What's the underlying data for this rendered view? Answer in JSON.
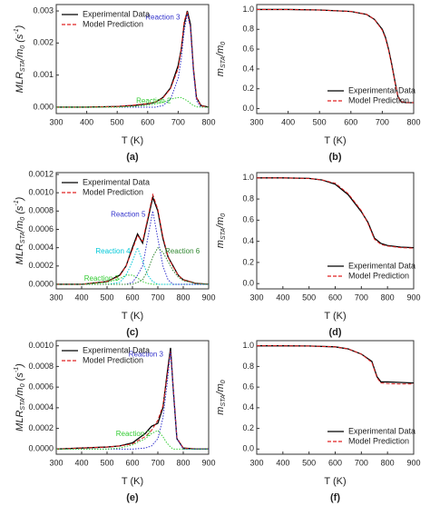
{
  "chart_data": [
    {
      "type": "line",
      "panel_label": "(a)",
      "xlabel": "T (K)",
      "ylabel": [
        "MLR",
        "STA",
        "/m",
        "0",
        " (s",
        "-1",
        ")"
      ],
      "xlim": [
        300,
        800
      ],
      "xticks": [
        300,
        400,
        500,
        600,
        700,
        800
      ],
      "ylim": [
        -0.0002,
        0.0032
      ],
      "yticks": [
        {
          "value": 0,
          "label": "0.000"
        },
        {
          "value": 0.001,
          "label": "0.001"
        },
        {
          "value": 0.002,
          "label": "0.002"
        },
        {
          "value": 0.003,
          "label": "0.003"
        }
      ],
      "legend": "upper left",
      "x": [
        300,
        400,
        500,
        550,
        600,
        625,
        650,
        675,
        700,
        710,
        720,
        730,
        740,
        750,
        760,
        775,
        800
      ],
      "series": [
        {
          "name": "Experimental Data",
          "color": "#000000",
          "style": "solid",
          "in_legend": true,
          "values": [
            0,
            0,
            2e-05,
            5e-05,
            0.0001,
            0.00015,
            0.0003,
            0.0006,
            0.0013,
            0.0018,
            0.0026,
            0.003,
            0.0026,
            0.0012,
            0.0003,
            5e-05,
            0
          ]
        },
        {
          "name": "Model Prediction",
          "color": "#e02020",
          "style": "dashed",
          "in_legend": true,
          "values": [
            0,
            0,
            2e-05,
            6e-05,
            0.00011,
            0.00016,
            0.00028,
            0.00058,
            0.0012,
            0.0018,
            0.0027,
            0.00295,
            0.0025,
            0.0012,
            0.0003,
            4e-05,
            0
          ]
        },
        {
          "name": "Reaction 3",
          "color": "#3333cc",
          "style": "dotted",
          "in_legend": false,
          "values": [
            0,
            0,
            0,
            0,
            0,
            0,
            5e-05,
            0.00025,
            0.0009,
            0.0015,
            0.0024,
            0.0029,
            0.0025,
            0.0011,
            0.0002,
            0,
            0
          ]
        },
        {
          "name": "Reaction 2",
          "color": "#33cc33",
          "style": "dotted",
          "in_legend": false,
          "values": [
            0,
            0,
            0,
            2e-05,
            6e-05,
            0.0001,
            0.00015,
            0.00025,
            0.0003,
            0.0003,
            0.00025,
            0.0002,
            0.00012,
            5e-05,
            1e-05,
            0,
            0
          ]
        }
      ]
    },
    {
      "type": "line",
      "panel_label": "(b)",
      "xlabel": "T (K)",
      "ylabel": [
        "m",
        "STA",
        "/m",
        "0"
      ],
      "xlim": [
        300,
        800
      ],
      "xticks": [
        300,
        400,
        500,
        600,
        700,
        800
      ],
      "ylim": [
        -0.05,
        1.05
      ],
      "yticks": [
        {
          "value": 0,
          "label": "0.0"
        },
        {
          "value": 0.2,
          "label": "0.2"
        },
        {
          "value": 0.4,
          "label": "0.4"
        },
        {
          "value": 0.6,
          "label": "0.6"
        },
        {
          "value": 0.8,
          "label": "0.8"
        },
        {
          "value": 1,
          "label": "1.0"
        }
      ],
      "legend": "lower right",
      "x": [
        300,
        400,
        500,
        600,
        650,
        675,
        700,
        710,
        720,
        730,
        740,
        750,
        760,
        775,
        800
      ],
      "series": [
        {
          "name": "Experimental Data",
          "color": "#000000",
          "style": "solid",
          "in_legend": true,
          "values": [
            1,
            1,
            0.995,
            0.98,
            0.95,
            0.9,
            0.8,
            0.72,
            0.6,
            0.45,
            0.28,
            0.12,
            0.07,
            0.06,
            0.06
          ]
        },
        {
          "name": "Model Prediction",
          "color": "#e02020",
          "style": "dashed",
          "in_legend": true,
          "values": [
            1,
            1,
            0.995,
            0.98,
            0.95,
            0.9,
            0.79,
            0.71,
            0.59,
            0.44,
            0.27,
            0.12,
            0.07,
            0.06,
            0.06
          ]
        }
      ]
    },
    {
      "type": "line",
      "panel_label": "(c)",
      "xlabel": "T (K)",
      "ylabel": [
        "MLR",
        "STA",
        "/m",
        "0",
        " (s",
        "-1",
        ")"
      ],
      "xlim": [
        300,
        900
      ],
      "xticks": [
        300,
        400,
        500,
        600,
        700,
        800,
        900
      ],
      "ylim": [
        -5e-05,
        0.00122
      ],
      "yticks": [
        {
          "value": 0,
          "label": "0.0000"
        },
        {
          "value": 0.0002,
          "label": "0.0002"
        },
        {
          "value": 0.0004,
          "label": "0.0004"
        },
        {
          "value": 0.0006,
          "label": "0.0006"
        },
        {
          "value": 0.0008,
          "label": "0.0008"
        },
        {
          "value": 0.001,
          "label": "0.0010"
        },
        {
          "value": 0.0012,
          "label": "0.0012"
        }
      ],
      "legend": "upper left",
      "x": [
        300,
        400,
        500,
        550,
        575,
        600,
        620,
        640,
        660,
        680,
        700,
        720,
        740,
        760,
        780,
        800,
        850,
        900
      ],
      "series": [
        {
          "name": "Experimental Data",
          "color": "#000000",
          "style": "solid",
          "in_legend": true,
          "values": [
            0,
            0,
            3e-05,
            0.0001,
            0.0002,
            0.0004,
            0.00055,
            0.00045,
            0.0007,
            0.00095,
            0.0008,
            0.0005,
            0.0003,
            0.0002,
            0.0001,
            5e-05,
            1e-05,
            0
          ]
        },
        {
          "name": "Model Prediction",
          "color": "#e02020",
          "style": "dashed",
          "in_legend": true,
          "values": [
            0,
            0,
            3e-05,
            9e-05,
            0.0002,
            0.00038,
            0.00053,
            0.00047,
            0.00072,
            0.00098,
            0.00082,
            0.00052,
            0.0003,
            0.00019,
            0.0001,
            5e-05,
            1e-05,
            0
          ]
        },
        {
          "name": "Reaction 3",
          "color": "#33cc33",
          "style": "dotted",
          "in_legend": false,
          "values": [
            0,
            0,
            2e-05,
            6e-05,
            0.0001,
            0.0001,
            7e-05,
            3e-05,
            1e-05,
            0,
            0,
            0,
            0,
            0,
            0,
            0,
            0,
            0
          ]
        },
        {
          "name": "Reaction 4",
          "color": "#00c8d8",
          "style": "dotted",
          "in_legend": false,
          "values": [
            0,
            0,
            0,
            2e-05,
            0.0001,
            0.00025,
            0.0004,
            0.00025,
            0.0001,
            3e-05,
            0,
            0,
            0,
            0,
            0,
            0,
            0,
            0
          ]
        },
        {
          "name": "Reaction 5",
          "color": "#3333cc",
          "style": "dotted",
          "in_legend": false,
          "values": [
            0,
            0,
            0,
            0,
            0,
            2e-05,
            0.0001,
            0.0002,
            0.0005,
            0.0008,
            0.0005,
            0.0002,
            5e-05,
            0,
            0,
            0,
            0,
            0
          ]
        },
        {
          "name": "Reaction 6",
          "color": "#338833",
          "style": "dotted",
          "in_legend": false,
          "values": [
            0,
            0,
            0,
            0,
            0,
            0,
            2e-05,
            5e-05,
            0.00015,
            0.0003,
            0.0004,
            0.00035,
            0.00025,
            0.00015,
            8e-05,
            4e-05,
            1e-05,
            0
          ]
        }
      ]
    },
    {
      "type": "line",
      "panel_label": "(d)",
      "xlabel": "T (K)",
      "ylabel": [
        "m",
        "STA",
        "/m",
        "0"
      ],
      "xlim": [
        300,
        900
      ],
      "xticks": [
        300,
        400,
        500,
        600,
        700,
        800,
        900
      ],
      "ylim": [
        -0.05,
        1.05
      ],
      "yticks": [
        {
          "value": 0,
          "label": "0.0"
        },
        {
          "value": 0.2,
          "label": "0.2"
        },
        {
          "value": 0.4,
          "label": "0.4"
        },
        {
          "value": 0.6,
          "label": "0.6"
        },
        {
          "value": 0.8,
          "label": "0.8"
        },
        {
          "value": 1,
          "label": "1.0"
        }
      ],
      "legend": "lower right",
      "x": [
        300,
        400,
        500,
        550,
        600,
        650,
        700,
        725,
        750,
        775,
        800,
        850,
        900
      ],
      "series": [
        {
          "name": "Experimental Data",
          "color": "#000000",
          "style": "solid",
          "in_legend": true,
          "values": [
            1,
            1,
            0.995,
            0.98,
            0.94,
            0.84,
            0.68,
            0.58,
            0.43,
            0.38,
            0.36,
            0.345,
            0.34
          ]
        },
        {
          "name": "Model Prediction",
          "color": "#e02020",
          "style": "dashed",
          "in_legend": true,
          "values": [
            1,
            1,
            0.995,
            0.98,
            0.95,
            0.85,
            0.69,
            0.57,
            0.42,
            0.37,
            0.355,
            0.34,
            0.335
          ]
        }
      ]
    },
    {
      "type": "line",
      "panel_label": "(e)",
      "xlabel": "T (K)",
      "ylabel": [
        "MLR",
        "STA",
        "/m",
        "0",
        " (s",
        "-1",
        ")"
      ],
      "xlim": [
        300,
        900
      ],
      "xticks": [
        300,
        400,
        500,
        600,
        700,
        800,
        900
      ],
      "ylim": [
        -5e-05,
        0.00105
      ],
      "yticks": [
        {
          "value": 0,
          "label": "0.0000"
        },
        {
          "value": 0.0002,
          "label": "0.0002"
        },
        {
          "value": 0.0004,
          "label": "0.0004"
        },
        {
          "value": 0.0006,
          "label": "0.0006"
        },
        {
          "value": 0.0008,
          "label": "0.0008"
        },
        {
          "value": 0.001,
          "label": "0.0010"
        }
      ],
      "legend": "upper left",
      "x": [
        300,
        400,
        500,
        550,
        600,
        650,
        675,
        700,
        720,
        735,
        750,
        760,
        775,
        800,
        850,
        900
      ],
      "series": [
        {
          "name": "Experimental Data",
          "color": "#000000",
          "style": "solid",
          "in_legend": true,
          "values": [
            0,
            1e-05,
            2e-05,
            3e-05,
            6e-05,
            0.00015,
            0.00022,
            0.00025,
            0.0004,
            0.0007,
            0.00098,
            0.0006,
            0.0001,
            1e-05,
            0,
            0
          ]
        },
        {
          "name": "Model Prediction",
          "color": "#e02020",
          "style": "dashed",
          "in_legend": true,
          "values": [
            0,
            1e-05,
            2e-05,
            3e-05,
            5e-05,
            0.00012,
            0.00018,
            0.00028,
            0.00042,
            0.00068,
            0.00095,
            0.00062,
            0.00011,
            1e-05,
            0,
            0
          ]
        },
        {
          "name": "Reaction 3",
          "color": "#3333cc",
          "style": "dotted",
          "in_legend": false,
          "values": [
            0,
            0,
            0,
            0,
            0,
            1e-05,
            3e-05,
            0.0001,
            0.0003,
            0.0006,
            0.00095,
            0.0006,
            0.0001,
            0,
            0,
            0
          ]
        },
        {
          "name": "Reaction 2",
          "color": "#33cc33",
          "style": "dotted",
          "in_legend": false,
          "values": [
            0,
            0,
            0,
            1e-05,
            4e-05,
            0.0001,
            0.00015,
            0.00018,
            0.00012,
            6e-05,
            2e-05,
            0,
            0,
            0,
            0,
            0
          ]
        }
      ]
    },
    {
      "type": "line",
      "panel_label": "(f)",
      "xlabel": "T (K)",
      "ylabel": [
        "m",
        "STA",
        "/m",
        "0"
      ],
      "xlim": [
        300,
        900
      ],
      "xticks": [
        300,
        400,
        500,
        600,
        700,
        800,
        900
      ],
      "ylim": [
        -0.05,
        1.05
      ],
      "yticks": [
        {
          "value": 0,
          "label": "0.0"
        },
        {
          "value": 0.2,
          "label": "0.2"
        },
        {
          "value": 0.4,
          "label": "0.4"
        },
        {
          "value": 0.6,
          "label": "0.6"
        },
        {
          "value": 0.8,
          "label": "0.8"
        },
        {
          "value": 1,
          "label": "1.0"
        }
      ],
      "legend": "lower right",
      "x": [
        300,
        400,
        500,
        600,
        650,
        700,
        740,
        760,
        775,
        800,
        850,
        900
      ],
      "series": [
        {
          "name": "Experimental Data",
          "color": "#000000",
          "style": "solid",
          "in_legend": true,
          "values": [
            1,
            1,
            0.998,
            0.99,
            0.97,
            0.92,
            0.85,
            0.7,
            0.65,
            0.65,
            0.645,
            0.64
          ]
        },
        {
          "name": "Model Prediction",
          "color": "#e02020",
          "style": "dashed",
          "in_legend": true,
          "values": [
            1,
            1,
            0.998,
            0.99,
            0.97,
            0.92,
            0.84,
            0.69,
            0.64,
            0.635,
            0.63,
            0.63
          ]
        }
      ]
    }
  ]
}
